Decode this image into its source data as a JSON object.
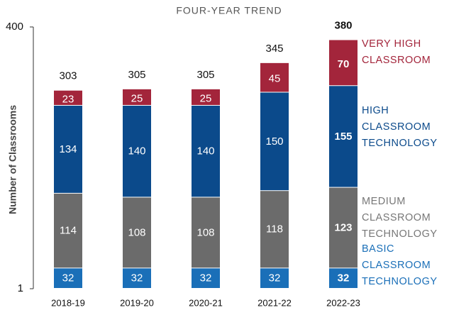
{
  "chart_data": {
    "type": "stacked_bar",
    "title": "FOUR-YEAR TREND",
    "y_label": "Number of Classrooms",
    "categories": [
      "2018-19",
      "2019-20",
      "2020-21",
      "2021-22",
      "2022-23"
    ],
    "series": [
      {
        "name": "BASIC CLASSROOM TECHNOLOGY",
        "color": "#1a6fb8",
        "values": [
          32,
          32,
          32,
          32,
          32
        ]
      },
      {
        "name": "MEDIUM CLASSROOM TECHNOLOGY",
        "color": "#6b6b6b",
        "values": [
          114,
          108,
          108,
          118,
          123
        ]
      },
      {
        "name": "HIGH CLASSROOM TECHNOLOGY",
        "color": "#0b4a8b",
        "values": [
          134,
          140,
          140,
          150,
          155
        ]
      },
      {
        "name": "VERY HIGH CLASSROOM",
        "color": "#a3253b",
        "values": [
          23,
          25,
          25,
          45,
          70
        ]
      }
    ],
    "totals": [
      303,
      305,
      305,
      345,
      380
    ],
    "ylim": [
      1,
      400
    ],
    "yticks": [
      1,
      400
    ]
  }
}
